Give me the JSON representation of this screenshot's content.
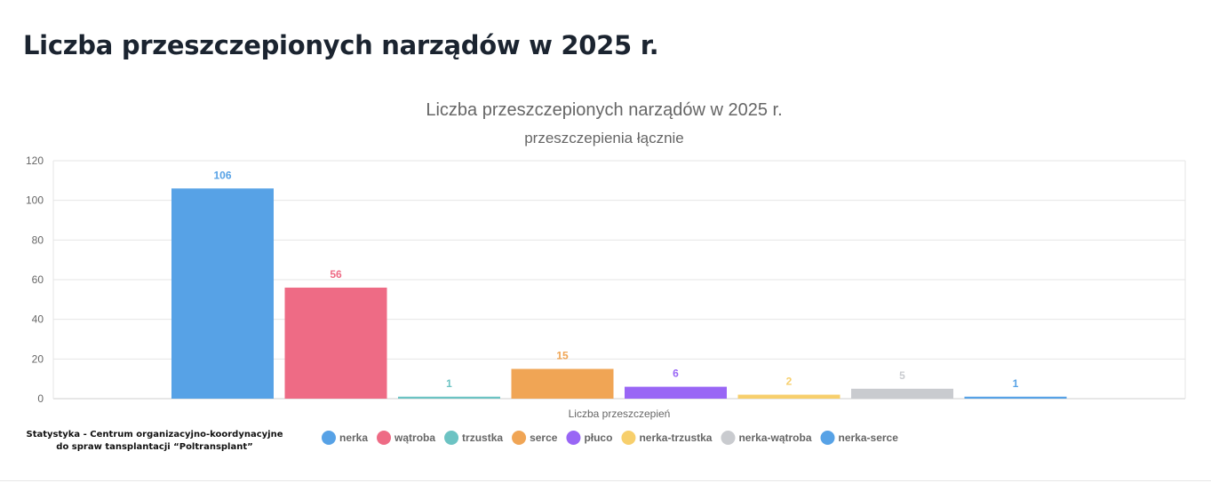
{
  "page": {
    "heading": "Liczba przeszczepionych narządów w 2025 r.",
    "footer_note": "Statystyka - Centrum organizacyjno-koordynacyjne do spraw tansplantacji “Poltransplant”"
  },
  "chart_data": {
    "type": "bar",
    "title": "Liczba przeszczepionych narządów w 2025 r.",
    "subtitle": "przeszczepienia łącznie",
    "xlabel": "Liczba przeszczepień",
    "ylabel": "",
    "ylim": [
      0,
      120
    ],
    "yticks": [
      0,
      20,
      40,
      60,
      80,
      100,
      120
    ],
    "grid": true,
    "legend_position": "bottom",
    "series": [
      {
        "name": "nerka",
        "value": 106,
        "color": "#57a2e6"
      },
      {
        "name": "wątroba",
        "value": 56,
        "color": "#ee6b85"
      },
      {
        "name": "trzustka",
        "value": 1,
        "color": "#6cc3c3"
      },
      {
        "name": "serce",
        "value": 15,
        "color": "#f0a555"
      },
      {
        "name": "płuco",
        "value": 6,
        "color": "#9966f5"
      },
      {
        "name": "nerka-trzustka",
        "value": 2,
        "color": "#f7cf6c"
      },
      {
        "name": "nerka-wątroba",
        "value": 5,
        "color": "#c9cbcf"
      },
      {
        "name": "nerka-serce",
        "value": 1,
        "color": "#57a2e6"
      }
    ]
  }
}
